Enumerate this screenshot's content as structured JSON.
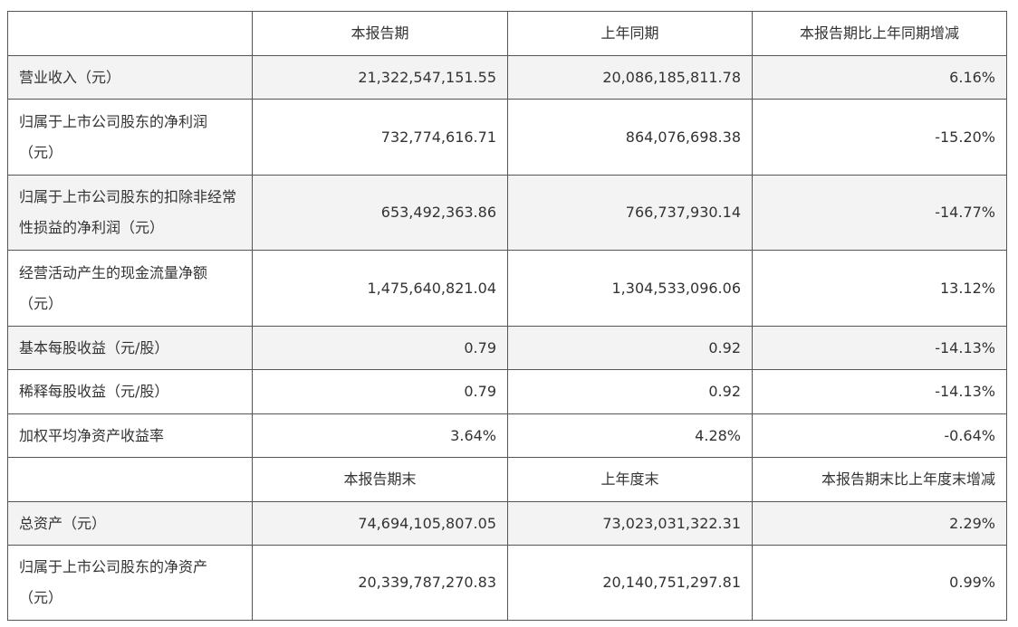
{
  "header": {
    "col0": "",
    "col1": "本报告期",
    "col2": "上年同期",
    "col3": "本报告期比上年同期增减"
  },
  "rows": [
    {
      "label": "营业收入（元）",
      "current": "21,322,547,151.55",
      "prior": "20,086,185,811.78",
      "change": "6.16%"
    },
    {
      "label": "归属于上市公司股东的净利润（元）",
      "current": "732,774,616.71",
      "prior": "864,076,698.38",
      "change": "-15.20%"
    },
    {
      "label": "归属于上市公司股东的扣除非经常性损益的净利润（元）",
      "current": "653,492,363.86",
      "prior": "766,737,930.14",
      "change": "-14.77%"
    },
    {
      "label": "经营活动产生的现金流量净额（元）",
      "current": "1,475,640,821.04",
      "prior": "1,304,533,096.06",
      "change": "13.12%"
    },
    {
      "label": "基本每股收益（元/股）",
      "current": "0.79",
      "prior": "0.92",
      "change": "-14.13%"
    },
    {
      "label": "稀释每股收益（元/股）",
      "current": "0.79",
      "prior": "0.92",
      "change": "-14.13%"
    },
    {
      "label": "加权平均净资产收益率",
      "current": "3.64%",
      "prior": "4.28%",
      "change": "-0.64%"
    }
  ],
  "header2": {
    "col0": "",
    "col1": "本报告期末",
    "col2": "上年度末",
    "col3": "本报告期末比上年度末增减"
  },
  "rows2": [
    {
      "label": "总资产（元）",
      "current": "74,694,105,807.05",
      "prior": "73,023,031,322.31",
      "change": "2.29%"
    },
    {
      "label": "归属于上市公司股东的净资产（元）",
      "current": "20,339,787,270.83",
      "prior": "20,140,751,297.81",
      "change": "0.99%"
    }
  ]
}
